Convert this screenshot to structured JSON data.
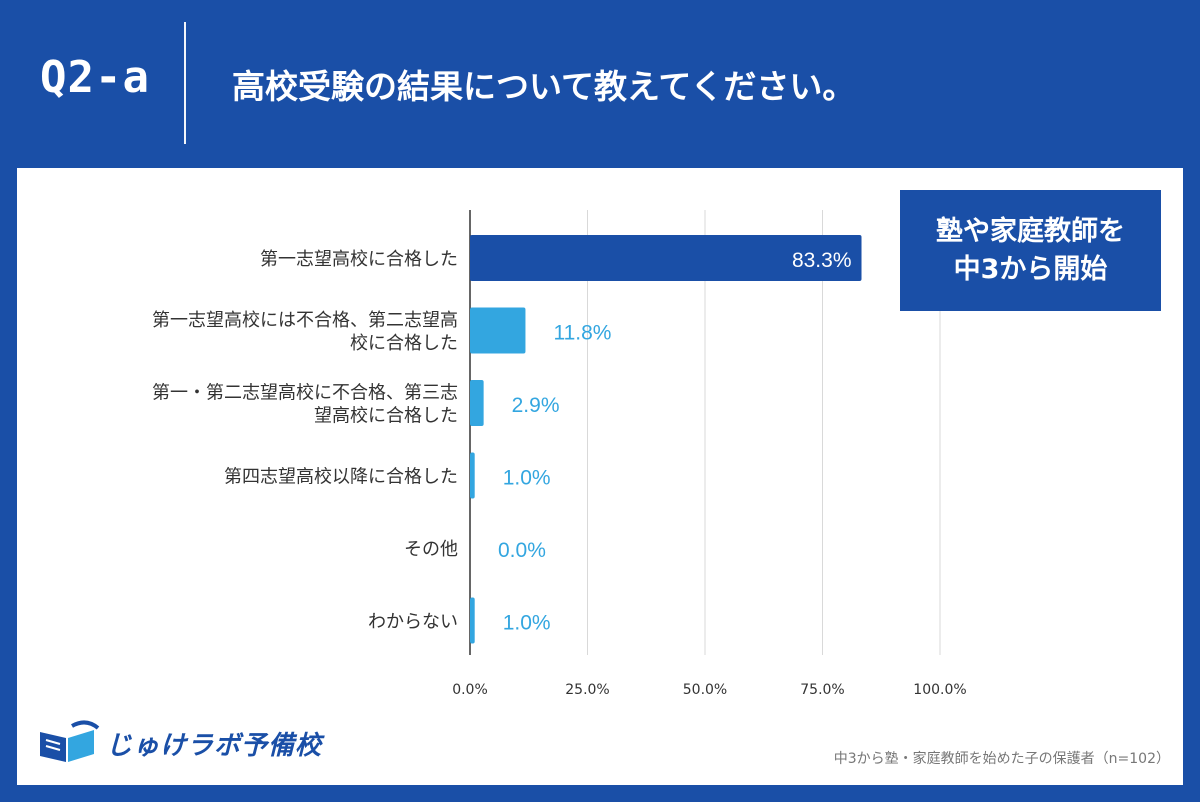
{
  "header": {
    "question_number": "Q2-a",
    "question_text": "高校受験の結果について教えてください。"
  },
  "badge": {
    "line1": "塾や家庭教師を",
    "line2": "中3から開始"
  },
  "logo": {
    "text": "じゅけラボ予備校"
  },
  "footnote": "中3から塾・家庭教師を始めた子の保護者（n=102）",
  "colors": {
    "background": "#1a4fa7",
    "top_bar": "#1a4fa7",
    "other_bars": "#33a6e0",
    "value_label_light": "#33a6e0",
    "grid": "#d9d9d9"
  },
  "chart_data": {
    "type": "bar",
    "orientation": "horizontal",
    "categories": [
      [
        "第一志望高校に合格した"
      ],
      [
        "第一志望高校には不合格、第二志望高",
        "校に合格した"
      ],
      [
        "第一・第二志望高校に不合格、第三志",
        "望高校に合格した"
      ],
      [
        "第四志望高校以降に合格した"
      ],
      [
        "その他"
      ],
      [
        "わからない"
      ]
    ],
    "values": [
      83.3,
      11.8,
      2.9,
      1.0,
      0.0,
      1.0
    ],
    "value_labels": [
      "83.3%",
      "11.8%",
      "2.9%",
      "1.0%",
      "0.0%",
      "1.0%"
    ],
    "xlim": [
      0,
      100
    ],
    "xticks": [
      0,
      25,
      50,
      75,
      100
    ],
    "xtick_labels": [
      "0.0%",
      "25.0%",
      "50.0%",
      "75.0%",
      "100.0%"
    ],
    "grid": true,
    "title": "",
    "xlabel": "",
    "ylabel": ""
  }
}
